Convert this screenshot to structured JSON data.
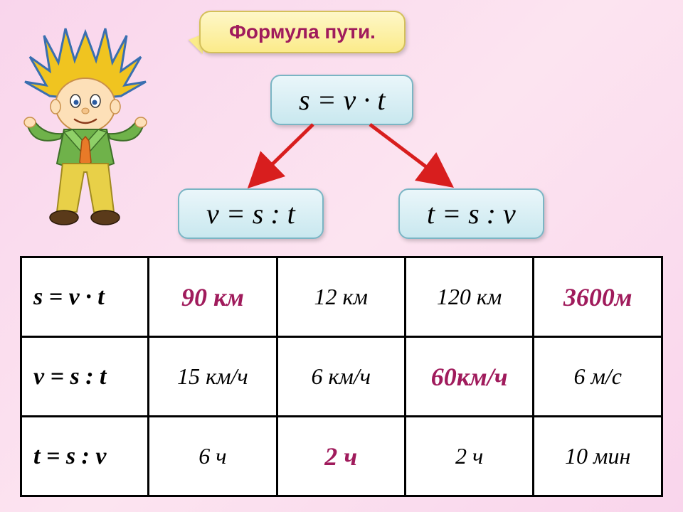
{
  "title": "Формула пути.",
  "formulas": {
    "main": "s = v · t",
    "velocity": "v = s : t",
    "time": "t = s : v"
  },
  "table": {
    "rows": [
      {
        "formula": "s = v · t",
        "cells": [
          {
            "text": "90 км",
            "type": "answer"
          },
          {
            "text": "12 км",
            "type": "value"
          },
          {
            "text": "120 км",
            "type": "value"
          },
          {
            "text": "3600м",
            "type": "answer"
          }
        ]
      },
      {
        "formula": "v = s : t",
        "cells": [
          {
            "text": "15 км/ч",
            "type": "value"
          },
          {
            "text": "6 км/ч",
            "type": "value"
          },
          {
            "text": "60км/ч",
            "type": "answer"
          },
          {
            "text": "6 м/с",
            "type": "value"
          }
        ]
      },
      {
        "formula": "t = s : v",
        "cells": [
          {
            "text": "6 ч",
            "type": "value"
          },
          {
            "text": "2 ч",
            "type": "answer"
          },
          {
            "text": "2 ч",
            "type": "value"
          },
          {
            "text": "10 мин",
            "type": "value"
          }
        ]
      }
    ]
  },
  "colors": {
    "bg_gradient_start": "#f9d5ec",
    "bubble_bg": "#fbeb8a",
    "bubble_border": "#d4c05a",
    "formula_bg": "#c9e8ef",
    "formula_border": "#7ab5c4",
    "accent_text": "#a01b5c",
    "arrow_color": "#d81e1e",
    "table_border": "#000000"
  },
  "character_colors": {
    "hair": "#f0c420",
    "hair_stroke": "#3a6fb0",
    "skin": "#fde0b8",
    "shirt": "#6fb24a",
    "tie": "#e87a28",
    "pants": "#e8d048",
    "shoes": "#5a3a1a"
  }
}
